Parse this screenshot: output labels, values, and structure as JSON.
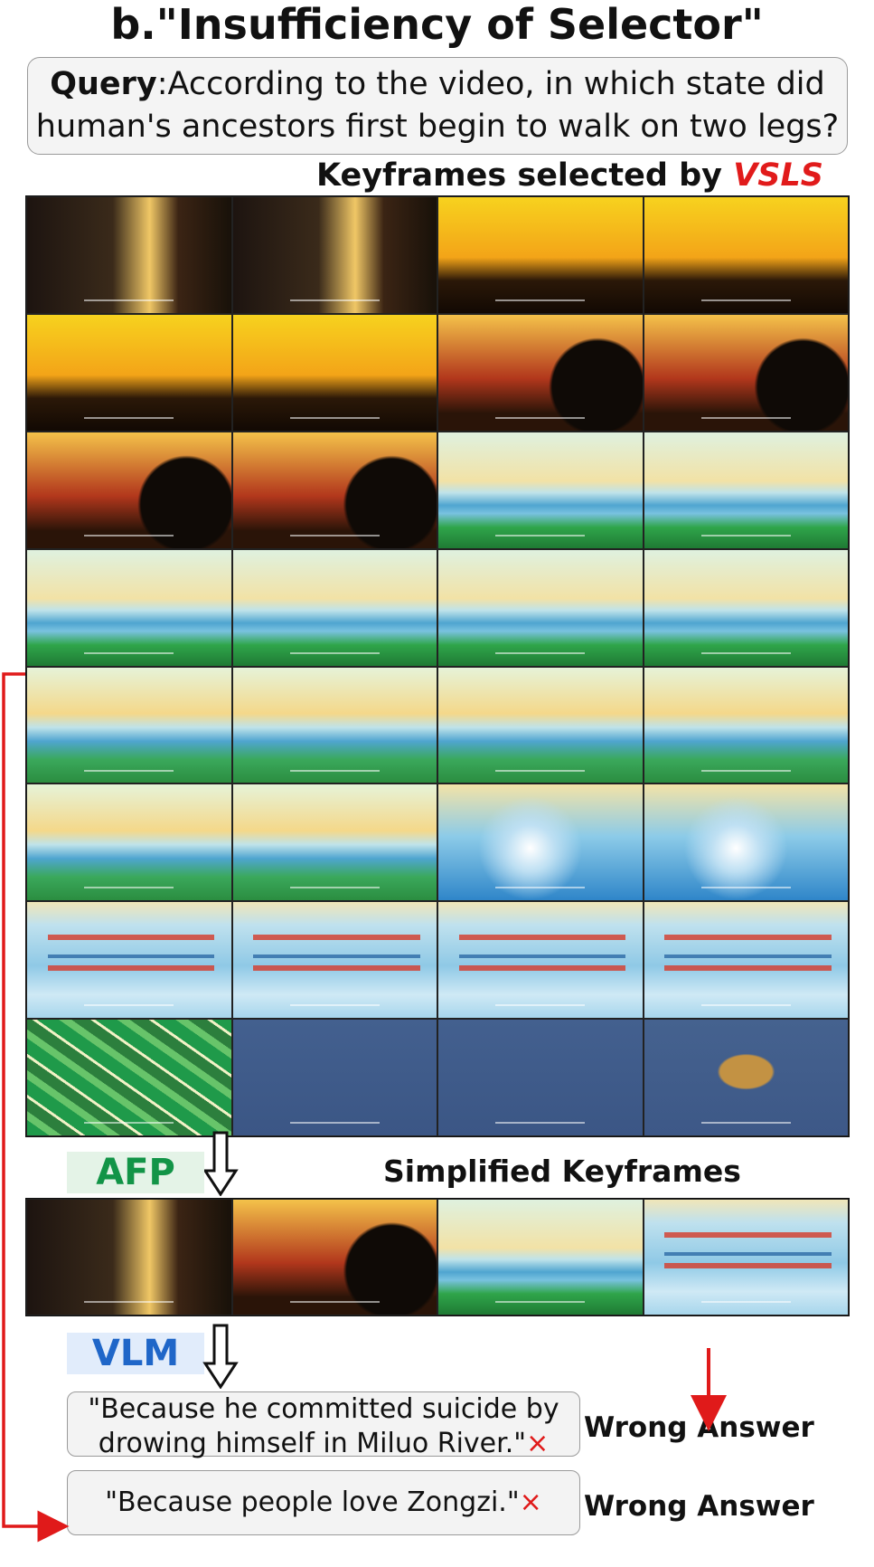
{
  "title": "b.\"Insufficiency of Selector\"",
  "query": {
    "label": "Query",
    "text": ":According to the video, in which state did human's ancestors first begin to walk on two legs?"
  },
  "keyframes_heading": {
    "prefix": "Keyframes selected by ",
    "method": "VSLS"
  },
  "keyframe_grid": {
    "rows": [
      [
        "dark",
        "dark",
        "sunset",
        "sunset"
      ],
      [
        "sunset",
        "sunset",
        "sil",
        "sil"
      ],
      [
        "sil",
        "sil",
        "river",
        "river"
      ],
      [
        "river",
        "river",
        "river",
        "river"
      ],
      [
        "river2",
        "river2",
        "river2",
        "river2"
      ],
      [
        "river2",
        "river2",
        "wave",
        "wave"
      ],
      [
        "boat",
        "boat",
        "boat",
        "boat"
      ],
      [
        "green",
        "navy",
        "navy",
        "food"
      ]
    ]
  },
  "afp_label": "AFP",
  "simplified_label": "Simplified Keyframes",
  "simplified_frames": [
    "dark",
    "sil",
    "river",
    "boat"
  ],
  "vlm_label": "VLM",
  "answers": [
    {
      "text": "\"Because he committed suicide by drowing himself in Miluo River.\"",
      "mark": "×",
      "verdict": "Wrong Answer"
    },
    {
      "text": "\"Because people love Zongzi.\"",
      "mark": "×",
      "verdict": "Wrong Answer"
    }
  ],
  "colors": {
    "vsls": "#e11b1b",
    "afp": "#129447",
    "vlm": "#1f66c8",
    "arrow": "#e01a1a"
  }
}
